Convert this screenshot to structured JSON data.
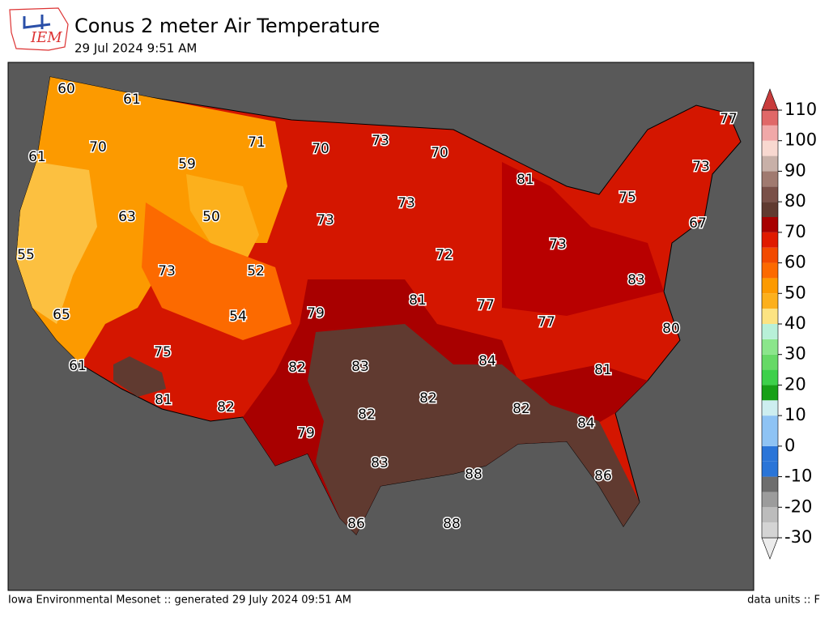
{
  "logo": "IEM",
  "title": "Conus 2 meter Air Temperature",
  "subtitle": "29 Jul 2024 9:51 AM",
  "footer_left": "Iowa Environmental Mesonet :: generated 29 July 2024 09:51 AM",
  "footer_right": "data units :: F",
  "colorbar": {
    "ticks": [
      -30,
      -20,
      -10,
      0,
      10,
      20,
      30,
      40,
      50,
      60,
      70,
      80,
      90,
      100,
      110
    ]
  },
  "labels": [
    60,
    61,
    61,
    70,
    59,
    71,
    70,
    73,
    70,
    77,
    81,
    73,
    75,
    73,
    73,
    63,
    50,
    67,
    55,
    73,
    72,
    73,
    52,
    83,
    79,
    81,
    77,
    65,
    54,
    77,
    80,
    75,
    84,
    82,
    83,
    81,
    61,
    81,
    82,
    82,
    82,
    82,
    84,
    79,
    83,
    88,
    86,
    86,
    88
  ]
}
